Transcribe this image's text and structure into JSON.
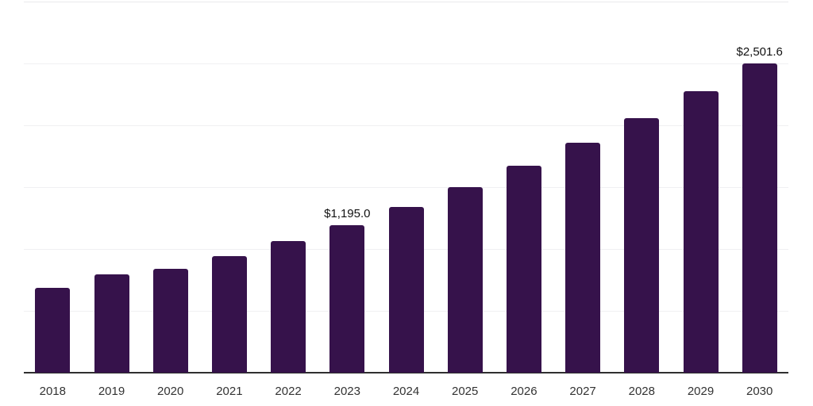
{
  "chart_data": {
    "type": "bar",
    "title": "",
    "xlabel": "",
    "ylabel": "",
    "categories": [
      "2018",
      "2019",
      "2020",
      "2021",
      "2022",
      "2023",
      "2024",
      "2025",
      "2026",
      "2027",
      "2028",
      "2029",
      "2030"
    ],
    "values": [
      684,
      795,
      838,
      940,
      1062,
      1195.0,
      1338,
      1500,
      1673,
      1859,
      2056,
      2278,
      2501.6
    ],
    "value_labels": {
      "2023": "$1,195.0",
      "2030": "$2,501.6"
    },
    "ylim": [
      0,
      3000
    ],
    "gridline_values": [
      500,
      1000,
      1500,
      2000,
      2500,
      3000
    ],
    "grid": true,
    "legend": false,
    "colors": {
      "bar": "#36124b",
      "axis": "#2f2f2f",
      "gridline": "#f0f0f2",
      "gridline_top": "#e9e9ec",
      "tick_label": "#333333",
      "value_label": "#111111",
      "background": "#ffffff"
    }
  }
}
